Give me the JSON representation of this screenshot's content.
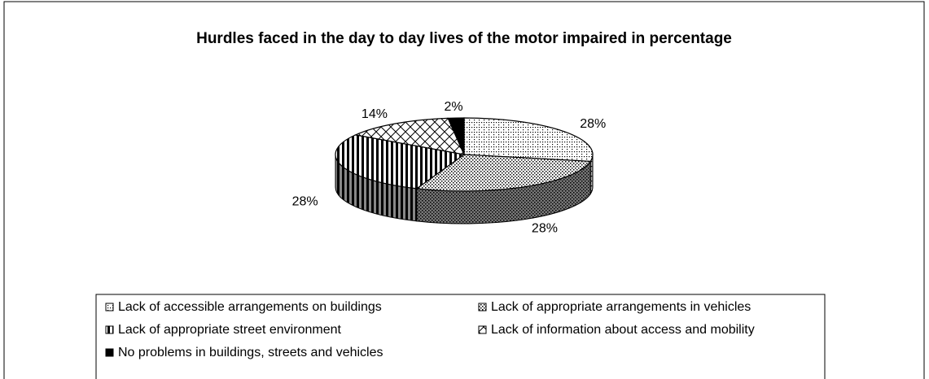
{
  "chart_data": {
    "type": "pie",
    "title": "Hurdles faced in the day to day lives of the motor impaired in percentage",
    "categories": [
      "Lack of accessible arrangements on buildings",
      "Lack of appropriate arrangements in vehicles",
      "Lack of appropriate street environment",
      "Lack of information about access and mobility",
      "No problems in buildings, streets and vehicles"
    ],
    "values": [
      28,
      28,
      28,
      14,
      2
    ],
    "value_labels": [
      "28%",
      "28%",
      "28%",
      "14%",
      "2%"
    ],
    "legend": "bottom"
  }
}
